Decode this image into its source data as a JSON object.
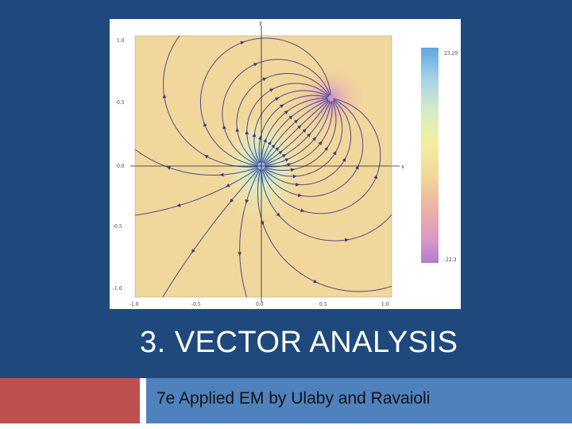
{
  "slide": {
    "title": "3. VECTOR ANALYSIS",
    "subtitle": "7e Applied EM by Ulaby and Ravaioli",
    "colors": {
      "background": "#1f497d",
      "accent_red": "#c0504d",
      "accent_blue": "#4f81bd",
      "title_text": "#ffffff"
    }
  },
  "figure": {
    "description_icon": "vector-field-stream-plot",
    "x_axis_label": "x",
    "y_axis_label": "y",
    "x_ticks": [
      "-1.0",
      "-0.5",
      "0.0",
      "0.5",
      "1.0"
    ],
    "y_ticks": [
      "1.0",
      "0.5",
      "0.0",
      "-0.5",
      "-1.0"
    ],
    "colorbar_max": "23.29",
    "colorbar_min": "-22.3",
    "field": {
      "sources": [
        {
          "x": 0.0,
          "y": 0.0,
          "charge": 1
        },
        {
          "x": 0.55,
          "y": 0.55,
          "charge": -1
        }
      ]
    }
  }
}
